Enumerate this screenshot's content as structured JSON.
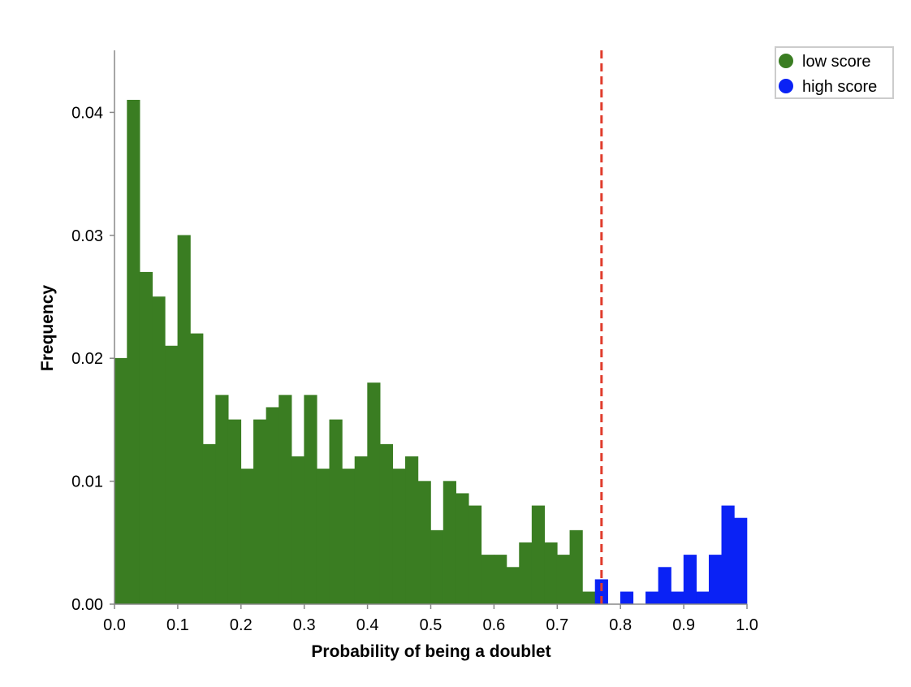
{
  "chart_data": {
    "type": "bar",
    "title": "",
    "xlabel": "Probability of being a doublet",
    "ylabel": "Frequency",
    "xlim": [
      0.0,
      1.0
    ],
    "ylim": [
      0.0,
      0.045
    ],
    "x_ticks": [
      "0.0",
      "0.1",
      "0.2",
      "0.3",
      "0.4",
      "0.5",
      "0.6",
      "0.7",
      "0.8",
      "0.9",
      "1.0"
    ],
    "y_ticks": [
      "0.00",
      "0.01",
      "0.02",
      "0.03",
      "0.04"
    ],
    "bin_width": 0.02,
    "threshold": 0.77,
    "grid": false,
    "legend_position": "top-right",
    "series": [
      {
        "name": "low score",
        "color": "#3a7d22",
        "bins": [
          [
            0.0,
            0.02
          ],
          [
            0.02,
            0.041
          ],
          [
            0.04,
            0.027
          ],
          [
            0.06,
            0.025
          ],
          [
            0.08,
            0.021
          ],
          [
            0.1,
            0.03
          ],
          [
            0.12,
            0.022
          ],
          [
            0.14,
            0.013
          ],
          [
            0.16,
            0.017
          ],
          [
            0.18,
            0.015
          ],
          [
            0.2,
            0.011
          ],
          [
            0.22,
            0.015
          ],
          [
            0.24,
            0.016
          ],
          [
            0.26,
            0.017
          ],
          [
            0.28,
            0.012
          ],
          [
            0.3,
            0.017
          ],
          [
            0.32,
            0.011
          ],
          [
            0.34,
            0.015
          ],
          [
            0.36,
            0.011
          ],
          [
            0.38,
            0.012
          ],
          [
            0.4,
            0.018
          ],
          [
            0.42,
            0.013
          ],
          [
            0.44,
            0.011
          ],
          [
            0.46,
            0.012
          ],
          [
            0.48,
            0.01
          ],
          [
            0.5,
            0.006
          ],
          [
            0.52,
            0.01
          ],
          [
            0.54,
            0.009
          ],
          [
            0.56,
            0.008
          ],
          [
            0.58,
            0.004
          ],
          [
            0.6,
            0.004
          ],
          [
            0.62,
            0.003
          ],
          [
            0.64,
            0.005
          ],
          [
            0.66,
            0.008
          ],
          [
            0.68,
            0.005
          ],
          [
            0.7,
            0.004
          ],
          [
            0.72,
            0.006
          ],
          [
            0.74,
            0.001
          ]
        ]
      },
      {
        "name": "high score",
        "color": "#0a22f5",
        "bins": [
          [
            0.76,
            0.002
          ],
          [
            0.8,
            0.001
          ],
          [
            0.84,
            0.001
          ],
          [
            0.86,
            0.003
          ],
          [
            0.88,
            0.001
          ],
          [
            0.9,
            0.004
          ],
          [
            0.92,
            0.001
          ],
          [
            0.94,
            0.004
          ],
          [
            0.96,
            0.008
          ],
          [
            0.98,
            0.007
          ]
        ]
      }
    ]
  }
}
